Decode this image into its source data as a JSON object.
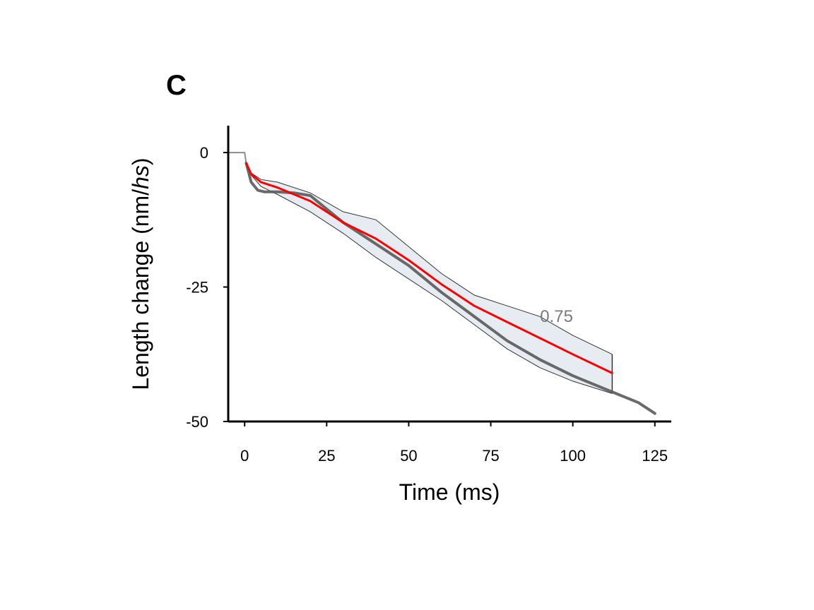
{
  "chart_data": {
    "type": "line",
    "panel_label": "C",
    "title": "",
    "xlabel": "Time (ms)",
    "ylabel_prefix": "Length change (nm/",
    "ylabel_italic": "hs",
    "ylabel_suffix": ")",
    "xlim": [
      -5,
      130
    ],
    "ylim": [
      -50,
      5
    ],
    "xticks": [
      0,
      25,
      50,
      75,
      100,
      125
    ],
    "yticks": [
      0,
      -25,
      -50
    ],
    "xtick_labels": [
      "0",
      "25",
      "50",
      "75",
      "100",
      "125"
    ],
    "ytick_labels": [
      "0",
      "-25",
      "-50"
    ],
    "annotation": {
      "text": "0.75",
      "x": 90,
      "y": -31.5
    },
    "colors": {
      "model": "#ff0000",
      "experiment": "#5a5a5a",
      "band_fill": "#e6ecf2",
      "band_edge": "#333333",
      "baseline": "#8c8c8c"
    },
    "series": [
      {
        "name": "experiment",
        "x": [
          0.5,
          2,
          4,
          6,
          10,
          15,
          20,
          25,
          30,
          40,
          50,
          60,
          70,
          80,
          90,
          100,
          112,
          120,
          125
        ],
        "y": [
          -2,
          -5.5,
          -7,
          -7.3,
          -7.3,
          -7.5,
          -8,
          -10.5,
          -13,
          -17,
          -21,
          -26,
          -30.5,
          -35,
          -38.5,
          -41.5,
          -44.5,
          -46.5,
          -48.5
        ]
      },
      {
        "name": "model",
        "x": [
          0.5,
          2,
          5,
          10,
          20,
          30,
          40,
          50,
          60,
          70,
          80,
          90,
          100,
          112
        ],
        "y": [
          -2,
          -4,
          -5.5,
          -6.5,
          -9,
          -13,
          -16,
          -20,
          -24.5,
          -28.5,
          -31.5,
          -34.5,
          -37.5,
          -41
        ]
      },
      {
        "name": "baseline",
        "x": [
          -5,
          0,
          0.5
        ],
        "y": [
          0,
          0,
          -2
        ]
      },
      {
        "name": "band_upper",
        "x": [
          0.5,
          2,
          5,
          10,
          20,
          30,
          40,
          50,
          60,
          70,
          80,
          90,
          100,
          112
        ],
        "y": [
          -2,
          -3.8,
          -5,
          -5.5,
          -7.5,
          -11,
          -12.5,
          -17.5,
          -22.5,
          -26.5,
          -28.5,
          -30.5,
          -34,
          -37.5
        ]
      },
      {
        "name": "band_lower",
        "x": [
          0.5,
          2,
          5,
          10,
          20,
          30,
          40,
          50,
          60,
          70,
          80,
          90,
          100,
          112
        ],
        "y": [
          -2,
          -4.2,
          -6.3,
          -7.8,
          -11,
          -15,
          -19.5,
          -23.5,
          -27.5,
          -32,
          -36.5,
          -40,
          -42.5,
          -44.8
        ]
      }
    ]
  }
}
